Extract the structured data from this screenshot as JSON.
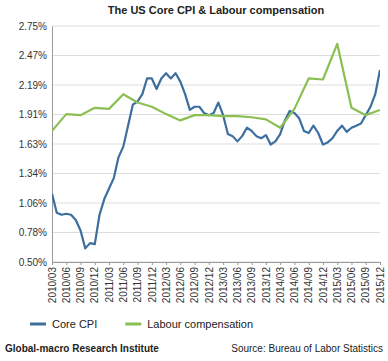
{
  "chart_data": {
    "type": "line",
    "title": "The US Core CPI & Labour compensation",
    "annotations": [
      "Global-macro Research Institute",
      "Source: Bureau of Labor Statistics"
    ],
    "categories": [
      "2010/03",
      null,
      null,
      "2010/06",
      null,
      null,
      "2010/09",
      null,
      null,
      "2010/12",
      null,
      null,
      "2011/03",
      null,
      null,
      "2011/06",
      null,
      null,
      "2011/09",
      null,
      null,
      "2011/12",
      null,
      null,
      "2012/03",
      null,
      null,
      "2012/06",
      null,
      null,
      "2012/09",
      null,
      null,
      "2012/12",
      null,
      null,
      "2013/03",
      null,
      null,
      "2013/06",
      null,
      null,
      "2013/09",
      null,
      null,
      "2013/12",
      null,
      null,
      "2014/03",
      null,
      null,
      "2014/06",
      null,
      null,
      "2014/09",
      null,
      null,
      "2014/12",
      null,
      null,
      "2015/03",
      null,
      null,
      "2015/06",
      null,
      null,
      "2015/09",
      null,
      null,
      "2015/12"
    ],
    "series": [
      {
        "name": "Core CPI",
        "color": "#3c6e9f",
        "values": [
          1.15,
          0.97,
          0.95,
          0.96,
          0.95,
          0.9,
          0.8,
          0.63,
          0.68,
          0.67,
          0.95,
          1.1,
          1.2,
          1.3,
          1.5,
          1.6,
          1.8,
          2.0,
          2.03,
          2.1,
          2.25,
          2.25,
          2.15,
          2.25,
          2.3,
          2.25,
          2.3,
          2.22,
          2.1,
          1.95,
          1.98,
          1.98,
          1.92,
          1.9,
          1.92,
          2.02,
          1.9,
          1.72,
          1.7,
          1.65,
          1.7,
          1.78,
          1.75,
          1.7,
          1.68,
          1.71,
          1.62,
          1.65,
          1.72,
          1.85,
          1.94,
          1.92,
          1.87,
          1.75,
          1.73,
          1.8,
          1.73,
          1.62,
          1.64,
          1.68,
          1.75,
          1.8,
          1.74,
          1.78,
          1.8,
          1.82,
          1.9,
          1.98,
          2.1,
          2.33
        ]
      },
      {
        "name": "Labour compensation",
        "color": "#8bbf52",
        "x": [
          "2010/03",
          "2010/06",
          "2010/09",
          "2010/12",
          "2011/03",
          "2011/06",
          "2011/09",
          "2011/12",
          "2012/03",
          "2012/06",
          "2012/09",
          "2012/12",
          "2013/03",
          "2013/06",
          "2013/09",
          "2013/12",
          "2014/03",
          "2014/06",
          "2014/09",
          "2014/12",
          "2015/03",
          "2015/06",
          "2015/09",
          "2015/12"
        ],
        "values": [
          1.75,
          1.91,
          1.9,
          1.97,
          1.96,
          2.1,
          2.02,
          1.98,
          1.91,
          1.85,
          1.9,
          1.9,
          1.89,
          1.89,
          1.88,
          1.86,
          1.78,
          1.96,
          2.25,
          2.24,
          2.58,
          1.97,
          1.9,
          1.95
        ]
      }
    ],
    "ylim": [
      0.5,
      2.75
    ],
    "yticks": [
      {
        "value": 0.5,
        "label": "0.50%"
      },
      {
        "value": 0.78125,
        "label": "0.78%"
      },
      {
        "value": 1.0625,
        "label": "1.06%"
      },
      {
        "value": 1.34375,
        "label": "1.34%"
      },
      {
        "value": 1.625,
        "label": "1.63%"
      },
      {
        "value": 1.90625,
        "label": "1.91%"
      },
      {
        "value": 2.1875,
        "label": "2.19%"
      },
      {
        "value": 2.46875,
        "label": "2.47%"
      },
      {
        "value": 2.75,
        "label": "2.75%"
      }
    ],
    "grid": true,
    "legend": "bottom"
  }
}
